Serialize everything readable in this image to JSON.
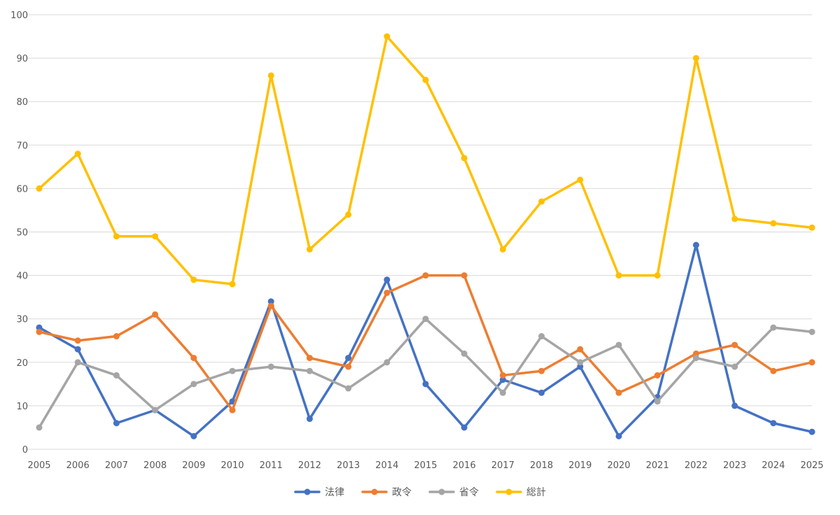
{
  "chart_data": {
    "type": "line",
    "x": [
      "2005",
      "2006",
      "2007",
      "2008",
      "2009",
      "2010",
      "2011",
      "2012",
      "2013",
      "2014",
      "2015",
      "2016",
      "2017",
      "2018",
      "2019",
      "2020",
      "2021",
      "2022",
      "2023",
      "2024",
      "2025"
    ],
    "series": [
      {
        "name": "法律",
        "color": "#4472C4",
        "values": [
          28,
          23,
          6,
          9,
          3,
          11,
          34,
          7,
          21,
          39,
          15,
          5,
          16,
          13,
          19,
          3,
          12,
          47,
          10,
          6,
          4
        ]
      },
      {
        "name": "政令",
        "color": "#ED7D31",
        "values": [
          27,
          25,
          26,
          31,
          21,
          9,
          33,
          21,
          19,
          36,
          40,
          40,
          17,
          18,
          23,
          13,
          17,
          22,
          24,
          18,
          20
        ]
      },
      {
        "name": "省令",
        "color": "#A5A5A5",
        "values": [
          5,
          20,
          17,
          9,
          15,
          18,
          19,
          18,
          14,
          20,
          30,
          22,
          13,
          26,
          20,
          24,
          11,
          21,
          19,
          28,
          27
        ]
      },
      {
        "name": "総計",
        "color": "#FFC000",
        "values": [
          60,
          68,
          49,
          49,
          39,
          38,
          86,
          46,
          54,
          95,
          85,
          67,
          46,
          57,
          62,
          40,
          40,
          90,
          53,
          52,
          51
        ]
      }
    ],
    "y_ticks": [
      "0",
      "10",
      "20",
      "30",
      "40",
      "50",
      "60",
      "70",
      "80",
      "90",
      "100"
    ],
    "ylim": [
      0,
      100
    ],
    "grid": true,
    "legend": "bottom"
  }
}
